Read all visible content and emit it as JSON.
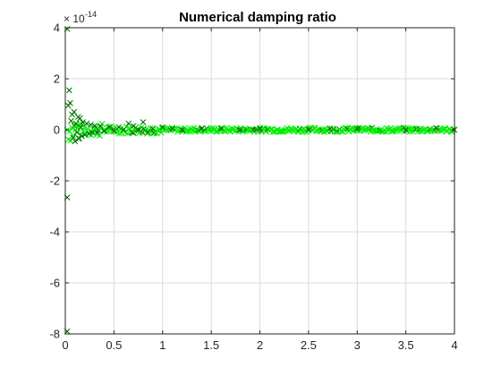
{
  "chart_data": {
    "type": "scatter",
    "title": "Numerical damping ratio",
    "xlabel": "",
    "ylabel": "",
    "exponent_base": "× 10",
    "exponent_power": "-14",
    "xlim": [
      0,
      4
    ],
    "ylim": [
      -8,
      4
    ],
    "y_scale_factor": 1e-14,
    "xticks": [
      0,
      0.5,
      1,
      1.5,
      2,
      2.5,
      3,
      3.5,
      4
    ],
    "xtick_labels": [
      "0",
      "0.5",
      "1",
      "1.5",
      "2",
      "2.5",
      "3",
      "3.5",
      "4"
    ],
    "yticks": [
      4,
      2,
      0,
      -2,
      -4,
      -6,
      -8
    ],
    "ytick_labels": [
      "4",
      "2",
      "0",
      "-2",
      "-4",
      "-6",
      "-8"
    ],
    "grid": true,
    "marker": "x",
    "marker_colors": {
      "primary": "#00ee00",
      "secondary": "#1a3a1a"
    },
    "series": [
      {
        "name": "",
        "points": [
          [
            0.02,
            3.95
          ],
          [
            0.02,
            -2.65
          ],
          [
            0.02,
            -7.9
          ],
          [
            0.03,
            0.95
          ],
          [
            0.04,
            1.55
          ],
          [
            0.05,
            1.05
          ],
          [
            0.06,
            0.35
          ],
          [
            0.07,
            0.6
          ],
          [
            0.08,
            -0.3
          ],
          [
            0.09,
            0.7
          ],
          [
            0.1,
            -0.45
          ],
          [
            0.11,
            0.25
          ],
          [
            0.12,
            -0.1
          ],
          [
            0.13,
            0.5
          ],
          [
            0.14,
            -0.35
          ],
          [
            0.15,
            0.45
          ],
          [
            0.16,
            0.1
          ],
          [
            0.17,
            -0.25
          ],
          [
            0.18,
            0.3
          ],
          [
            0.2,
            -0.2
          ],
          [
            0.22,
            0.25
          ],
          [
            0.24,
            -0.15
          ],
          [
            0.26,
            0.2
          ],
          [
            0.28,
            -0.1
          ],
          [
            0.3,
            0.15
          ],
          [
            0.33,
            -0.1
          ],
          [
            0.36,
            0.15
          ],
          [
            0.4,
            -0.05
          ],
          [
            0.45,
            0.1
          ],
          [
            0.5,
            -0.05
          ],
          [
            0.55,
            0.1
          ],
          [
            0.6,
            0.0
          ],
          [
            0.65,
            0.25
          ],
          [
            0.7,
            0.15
          ],
          [
            0.75,
            0.0
          ],
          [
            0.8,
            0.3
          ],
          [
            0.85,
            -0.1
          ],
          [
            0.9,
            0.05
          ],
          [
            1.0,
            0.1
          ],
          [
            1.1,
            0.05
          ],
          [
            1.2,
            0.0
          ],
          [
            1.4,
            0.05
          ],
          [
            1.6,
            0.05
          ],
          [
            1.8,
            0.0
          ],
          [
            2.0,
            0.05
          ],
          [
            2.5,
            0.0
          ],
          [
            3.0,
            0.05
          ],
          [
            3.5,
            0.0
          ],
          [
            4.0,
            0.0
          ]
        ]
      }
    ],
    "noise_band": {
      "x_range": [
        0.02,
        4.0
      ],
      "segments": [
        {
          "x_start": 0.02,
          "x_end": 0.15,
          "amplitude": 0.5
        },
        {
          "x_start": 0.15,
          "x_end": 0.4,
          "amplitude": 0.25
        },
        {
          "x_start": 0.4,
          "x_end": 1.0,
          "amplitude": 0.15
        },
        {
          "x_start": 1.0,
          "x_end": 4.0,
          "amplitude": 0.08
        }
      ]
    }
  }
}
